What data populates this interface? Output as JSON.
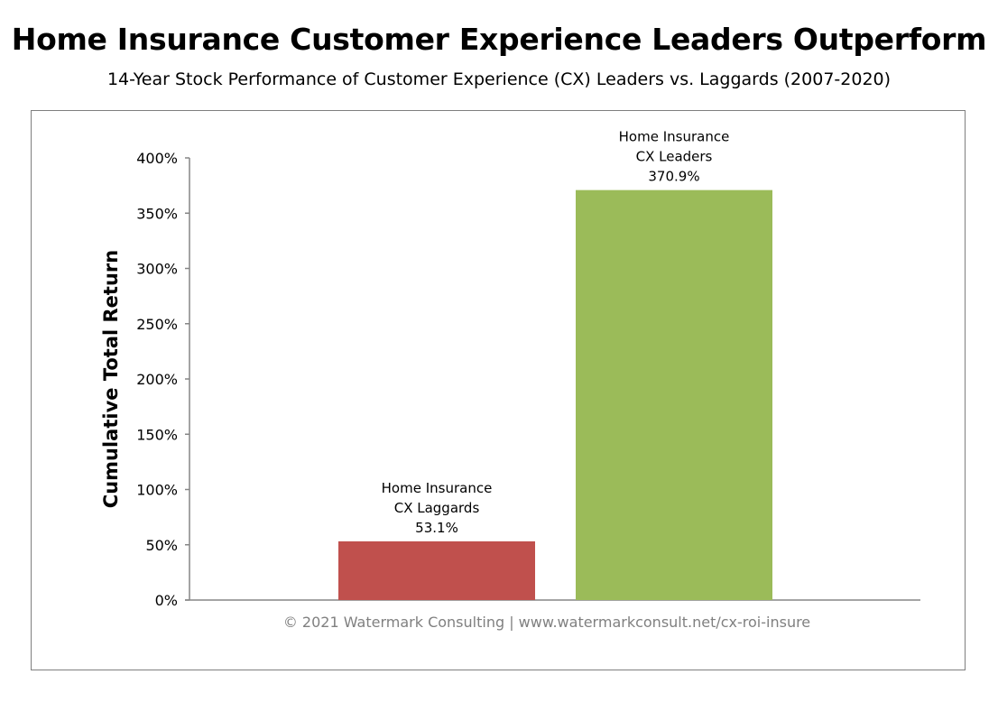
{
  "chart_data": {
    "type": "bar",
    "title": "Home Insurance Customer Experience Leaders Outperform",
    "subtitle": "14-Year Stock Performance of Customer Experience (CX) Leaders vs. Laggards (2007-2020)",
    "xlabel": "",
    "ylabel": "Cumulative Total Return",
    "ylim": [
      0,
      400
    ],
    "yticks": [
      "0%",
      "50%",
      "100%",
      "150%",
      "200%",
      "250%",
      "300%",
      "350%",
      "400%"
    ],
    "categories": [
      "Home Insurance CX Laggards",
      "Home Insurance CX Leaders"
    ],
    "values": [
      53.1,
      370.9
    ],
    "data_labels": [
      [
        "Home Insurance",
        "CX Laggards",
        "53.1%"
      ],
      [
        "Home Insurance",
        "CX Leaders",
        "370.9%"
      ]
    ],
    "colors": [
      "#C0504D",
      "#9BBB59"
    ],
    "grid": false,
    "legend": "none",
    "footer": "© 2021 Watermark Consulting | www.watermarkconsult.net/cx-roi-insure"
  }
}
